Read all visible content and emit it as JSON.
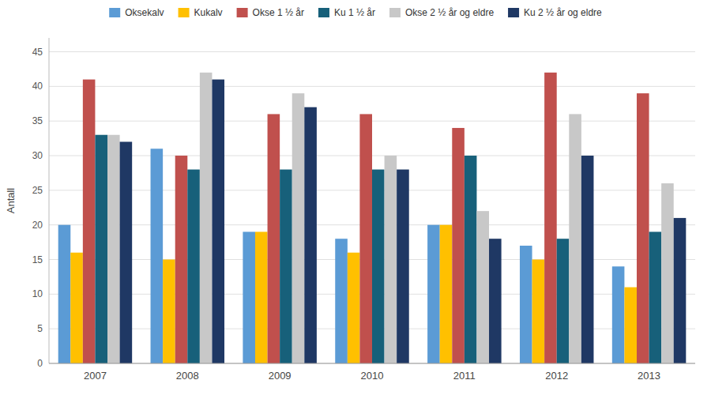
{
  "chart_data": {
    "type": "bar",
    "categories": [
      "2007",
      "2008",
      "2009",
      "2010",
      "2011",
      "2012",
      "2013"
    ],
    "series": [
      {
        "name": "Oksekalv",
        "color": "#5b9bd5",
        "values": [
          20,
          31,
          19,
          18,
          20,
          17,
          14
        ]
      },
      {
        "name": "Kukalv",
        "color": "#ffc000",
        "values": [
          16,
          15,
          19,
          16,
          20,
          15,
          11
        ]
      },
      {
        "name": "Okse 1 ½ år",
        "color": "#c0504d",
        "values": [
          41,
          30,
          36,
          36,
          34,
          42,
          39
        ]
      },
      {
        "name": "Ku 1 ½ år",
        "color": "#17607a",
        "values": [
          33,
          28,
          28,
          28,
          30,
          18,
          19
        ]
      },
      {
        "name": "Okse 2 ½ år og eldre",
        "color": "#c8c8c8",
        "values": [
          33,
          42,
          39,
          30,
          22,
          36,
          26
        ]
      },
      {
        "name": "Ku 2 ½ år og eldre",
        "color": "#1f3864",
        "values": [
          32,
          41,
          37,
          28,
          18,
          30,
          21
        ]
      }
    ],
    "ylabel": "Antall",
    "ylim": [
      0,
      47
    ],
    "yticks": [
      0,
      5,
      10,
      15,
      20,
      25,
      30,
      35,
      40,
      45
    ],
    "grid": true,
    "legend": "top"
  }
}
